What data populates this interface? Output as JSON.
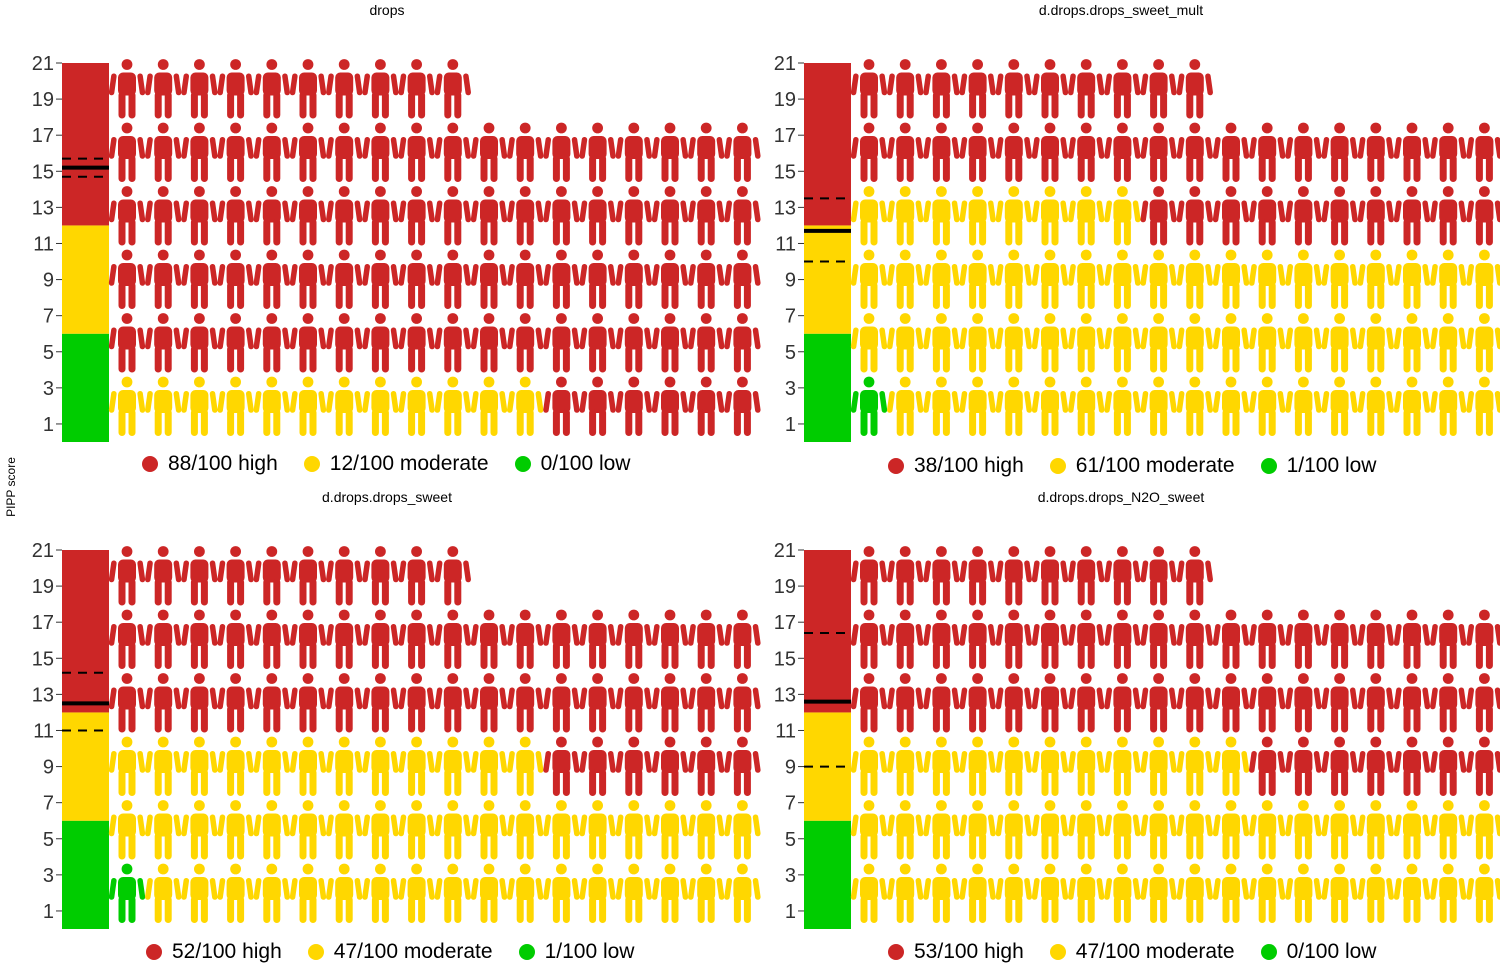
{
  "y_axis_label": "PIPP score",
  "colors": {
    "high": "#cc2626",
    "moderate": "#ffd700",
    "low": "#00cc00",
    "marker": "#000000"
  },
  "chart_data": [
    {
      "type": "pictogram",
      "title": "drops",
      "ylim": [
        0,
        21
      ],
      "yticks": [
        1,
        3,
        5,
        7,
        9,
        11,
        13,
        15,
        17,
        19,
        21
      ],
      "bands": [
        {
          "category": "low",
          "from": 0,
          "to": 6
        },
        {
          "category": "moderate",
          "from": 6,
          "to": 12
        },
        {
          "category": "high",
          "from": 12,
          "to": 21
        }
      ],
      "mean": 15.2,
      "ci_lower": 14.7,
      "ci_upper": 15.7,
      "counts": {
        "high": 88,
        "moderate": 12,
        "low": 0
      },
      "total": 100,
      "legend": [
        "88/100 high",
        "12/100 moderate",
        "0/100 low"
      ]
    },
    {
      "type": "pictogram",
      "title": "d.drops.drops_sweet_mult",
      "ylim": [
        0,
        21
      ],
      "yticks": [
        1,
        3,
        5,
        7,
        9,
        11,
        13,
        15,
        17,
        19,
        21
      ],
      "bands": [
        {
          "category": "low",
          "from": 0,
          "to": 6
        },
        {
          "category": "moderate",
          "from": 6,
          "to": 12
        },
        {
          "category": "high",
          "from": 12,
          "to": 21
        }
      ],
      "mean": 11.7,
      "ci_lower": 10.0,
      "ci_upper": 13.5,
      "counts": {
        "high": 38,
        "moderate": 61,
        "low": 1
      },
      "total": 100,
      "legend": [
        "38/100 high",
        "61/100 moderate",
        "1/100 low"
      ]
    },
    {
      "type": "pictogram",
      "title": "d.drops.drops_sweet",
      "ylim": [
        0,
        21
      ],
      "yticks": [
        1,
        3,
        5,
        7,
        9,
        11,
        13,
        15,
        17,
        19,
        21
      ],
      "bands": [
        {
          "category": "low",
          "from": 0,
          "to": 6
        },
        {
          "category": "moderate",
          "from": 6,
          "to": 12
        },
        {
          "category": "high",
          "from": 12,
          "to": 21
        }
      ],
      "mean": 12.5,
      "ci_lower": 11.0,
      "ci_upper": 14.2,
      "counts": {
        "high": 52,
        "moderate": 47,
        "low": 1
      },
      "total": 100,
      "legend": [
        "52/100 high",
        "47/100 moderate",
        "1/100 low"
      ]
    },
    {
      "type": "pictogram",
      "title": "d.drops.drops_N2O_sweet",
      "ylim": [
        0,
        21
      ],
      "yticks": [
        1,
        3,
        5,
        7,
        9,
        11,
        13,
        15,
        17,
        19,
        21
      ],
      "bands": [
        {
          "category": "low",
          "from": 0,
          "to": 6
        },
        {
          "category": "moderate",
          "from": 6,
          "to": 12
        },
        {
          "category": "high",
          "from": 12,
          "to": 21
        }
      ],
      "mean": 12.6,
      "ci_lower": 9.0,
      "ci_upper": 16.4,
      "counts": {
        "high": 53,
        "moderate": 47,
        "low": 0
      },
      "total": 100,
      "legend": [
        "53/100 high",
        "47/100 moderate",
        "0/100 low"
      ]
    }
  ]
}
